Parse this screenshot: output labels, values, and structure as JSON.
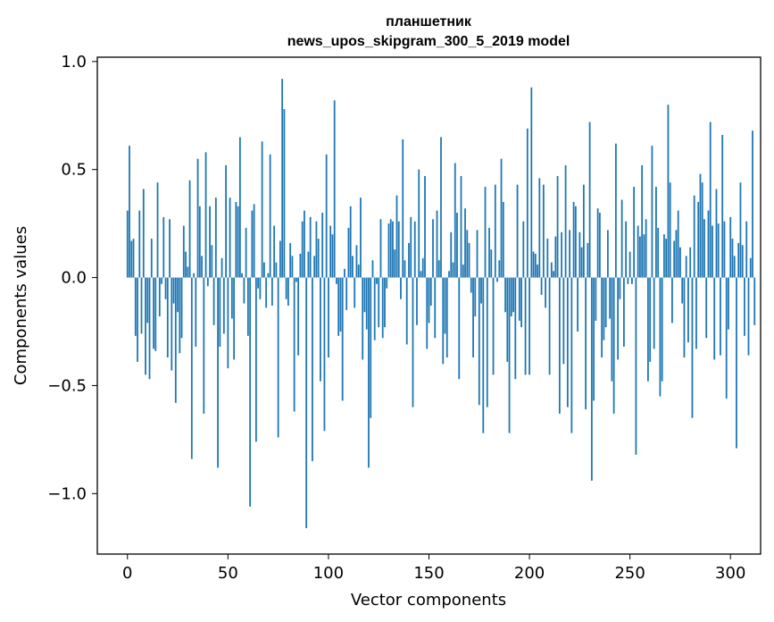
{
  "chart_data": {
    "type": "bar",
    "title_lines": [
      "планшетник",
      "news_upos_skipgram_300_5_2019 model"
    ],
    "xlabel": "Vector components",
    "ylabel": "Components values",
    "xlim": [
      -15,
      315
    ],
    "ylim": [
      -1.28,
      1.02
    ],
    "x_ticks": [
      0,
      50,
      100,
      150,
      200,
      250,
      300
    ],
    "y_ticks": [
      -1.0,
      -0.5,
      0.0,
      0.5,
      1.0
    ],
    "y_tick_labels": [
      "−1.0",
      "−0.5",
      "0.0",
      "0.5",
      "1.0"
    ],
    "bar_color": "#1f77b4",
    "x_start": 0,
    "values": [
      0.31,
      0.61,
      0.17,
      0.18,
      -0.27,
      -0.39,
      0.31,
      -0.26,
      0.41,
      -0.45,
      -0.21,
      -0.47,
      0.18,
      -0.33,
      -0.34,
      0.44,
      -0.18,
      -0.03,
      0.28,
      -0.1,
      -0.37,
      0.27,
      -0.43,
      -0.12,
      -0.58,
      -0.16,
      -0.35,
      -0.28,
      0.24,
      0.12,
      0.05,
      0.45,
      -0.84,
      0.02,
      -0.32,
      0.55,
      0.33,
      0.1,
      -0.63,
      0.58,
      -0.04,
      0.33,
      0.15,
      -0.22,
      0.37,
      -0.88,
      -0.32,
      0.09,
      -0.26,
      0.52,
      -0.42,
      0.37,
      -0.19,
      -0.38,
      0.35,
      0.33,
      0.65,
      0.02,
      -0.12,
      0.23,
      -0.27,
      -1.06,
      0.31,
      0.34,
      -0.76,
      -0.05,
      -0.1,
      0.63,
      0.07,
      -0.14,
      0.02,
      0.57,
      -0.13,
      0.24,
      0.07,
      -0.74,
      0.17,
      0.92,
      0.78,
      -0.1,
      -0.13,
      0.16,
      0.1,
      -0.62,
      -0.02,
      -0.36,
      0.11,
      0.26,
      0.31,
      -1.16,
      0.12,
      0.28,
      -0.85,
      0.1,
      0.26,
      0.18,
      -0.48,
      0.3,
      -0.71,
      0.57,
      -0.37,
      0.24,
      0.2,
      0.82,
      -0.03,
      -0.27,
      -0.25,
      -0.57,
      0.04,
      -0.15,
      0.23,
      0.33,
      0.1,
      -0.14,
      0.15,
      0.06,
      0.37,
      -0.38,
      -0.16,
      -0.24,
      -0.88,
      -0.65,
      0.08,
      -0.29,
      -0.03,
      -0.23,
      0.27,
      -0.28,
      -0.23,
      -0.05,
      0.25,
      0.27,
      0.26,
      0.13,
      0.38,
      0.26,
      -0.1,
      0.64,
      0.08,
      -0.31,
      0.16,
      0.28,
      -0.6,
      0.26,
      -0.22,
      0.5,
      0.03,
      0.09,
      0.47,
      -0.33,
      -0.21,
      -0.13,
      0.27,
      -0.28,
      0.31,
      0.08,
      0.65,
      -0.4,
      -0.26,
      -0.37,
      0.03,
      0.21,
      0.07,
      0.53,
      0.3,
      -0.47,
      0.47,
      0.06,
      0.32,
      0.22,
      0.16,
      -0.07,
      -0.37,
      -0.18,
      0.22,
      -0.59,
      -0.12,
      -0.72,
      0.42,
      -0.6,
      0.23,
      0.13,
      -0.45,
      0.43,
      -0.02,
      0.08,
      0.55,
      0.35,
      -0.16,
      -0.39,
      -0.72,
      -0.18,
      -0.16,
      -0.47,
      0.43,
      -0.2,
      -0.23,
      0.26,
      -0.45,
      0.69,
      -0.45,
      0.88,
      0.12,
      0.11,
      0.06,
      0.46,
      -0.08,
      0.43,
      -0.14,
      0.18,
      -0.45,
      0.07,
      0.03,
      0.19,
      0.47,
      -0.63,
      0.21,
      -0.4,
      0.52,
      -0.6,
      0.22,
      -0.72,
      0.35,
      0.33,
      -0.25,
      0.21,
      0.14,
      0.43,
      -0.61,
      0.16,
      0.72,
      -0.94,
      -0.57,
      -0.2,
      0.32,
      0.3,
      -0.37,
      -0.29,
      -0.23,
      0.22,
      -0.19,
      -0.48,
      -0.63,
      0.62,
      -0.38,
      -0.1,
      0.36,
      -0.32,
      0.26,
      -0.03,
      0.12,
      -0.03,
      0.42,
      -0.82,
      0.24,
      0.19,
      0.52,
      0.2,
      0.27,
      -0.48,
      -0.39,
      0.61,
      -0.33,
      0.42,
      0.23,
      -0.55,
      -0.48,
      0.2,
      0.18,
      0.8,
      0.44,
      -0.21,
      0.17,
      0.22,
      0.31,
      0.14,
      -0.12,
      -0.37,
      0.1,
      -0.3,
      0.14,
      -0.65,
      0.38,
      -0.33,
      0.35,
      0.48,
      0.44,
      0.27,
      -0.28,
      0.31,
      0.72,
      0.24,
      -0.38,
      0.41,
      0.25,
      -0.36,
      0.66,
      0.26,
      -0.56,
      -0.24,
      0.28,
      0.18,
      0.1,
      -0.79,
      0.16,
      0.44,
      0.15,
      -0.27,
      0.26,
      -0.36,
      0.09,
      0.68,
      -0.22
    ]
  }
}
